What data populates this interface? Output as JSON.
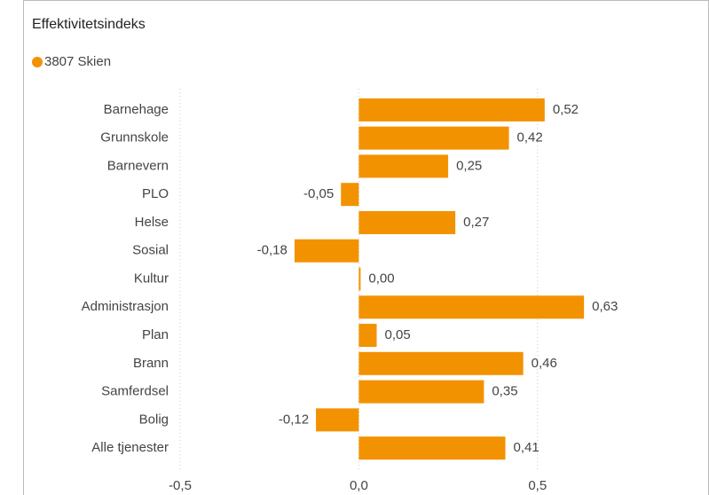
{
  "chart_data": {
    "type": "bar",
    "orientation": "horizontal",
    "title": "Effektivitetsindeks",
    "categories": [
      "Barnehage",
      "Grunnskole",
      "Barnevern",
      "PLO",
      "Helse",
      "Sosial",
      "Kultur",
      "Administrasjon",
      "Plan",
      "Brann",
      "Samferdsel",
      "Bolig",
      "Alle tjenester"
    ],
    "series": [
      {
        "name": "3807 Skien",
        "color": "#f39200",
        "values": [
          0.52,
          0.42,
          0.25,
          -0.05,
          0.27,
          -0.18,
          0.0,
          0.63,
          0.05,
          0.46,
          0.35,
          -0.12,
          0.41
        ],
        "value_labels": [
          "0,52",
          "0,42",
          "0,25",
          "-0,05",
          "0,27",
          "-0,18",
          "0,00",
          "0,63",
          "0,05",
          "0,46",
          "0,35",
          "-0,12",
          "0,41"
        ]
      }
    ],
    "xlim": [
      -0.5,
      0.95
    ],
    "xticks": [
      {
        "value": -0.5,
        "label": "-0,5"
      },
      {
        "value": 0,
        "label": "0,0"
      },
      {
        "value": 0.5,
        "label": "0,5"
      }
    ],
    "grid": true,
    "legend": "top-left"
  }
}
